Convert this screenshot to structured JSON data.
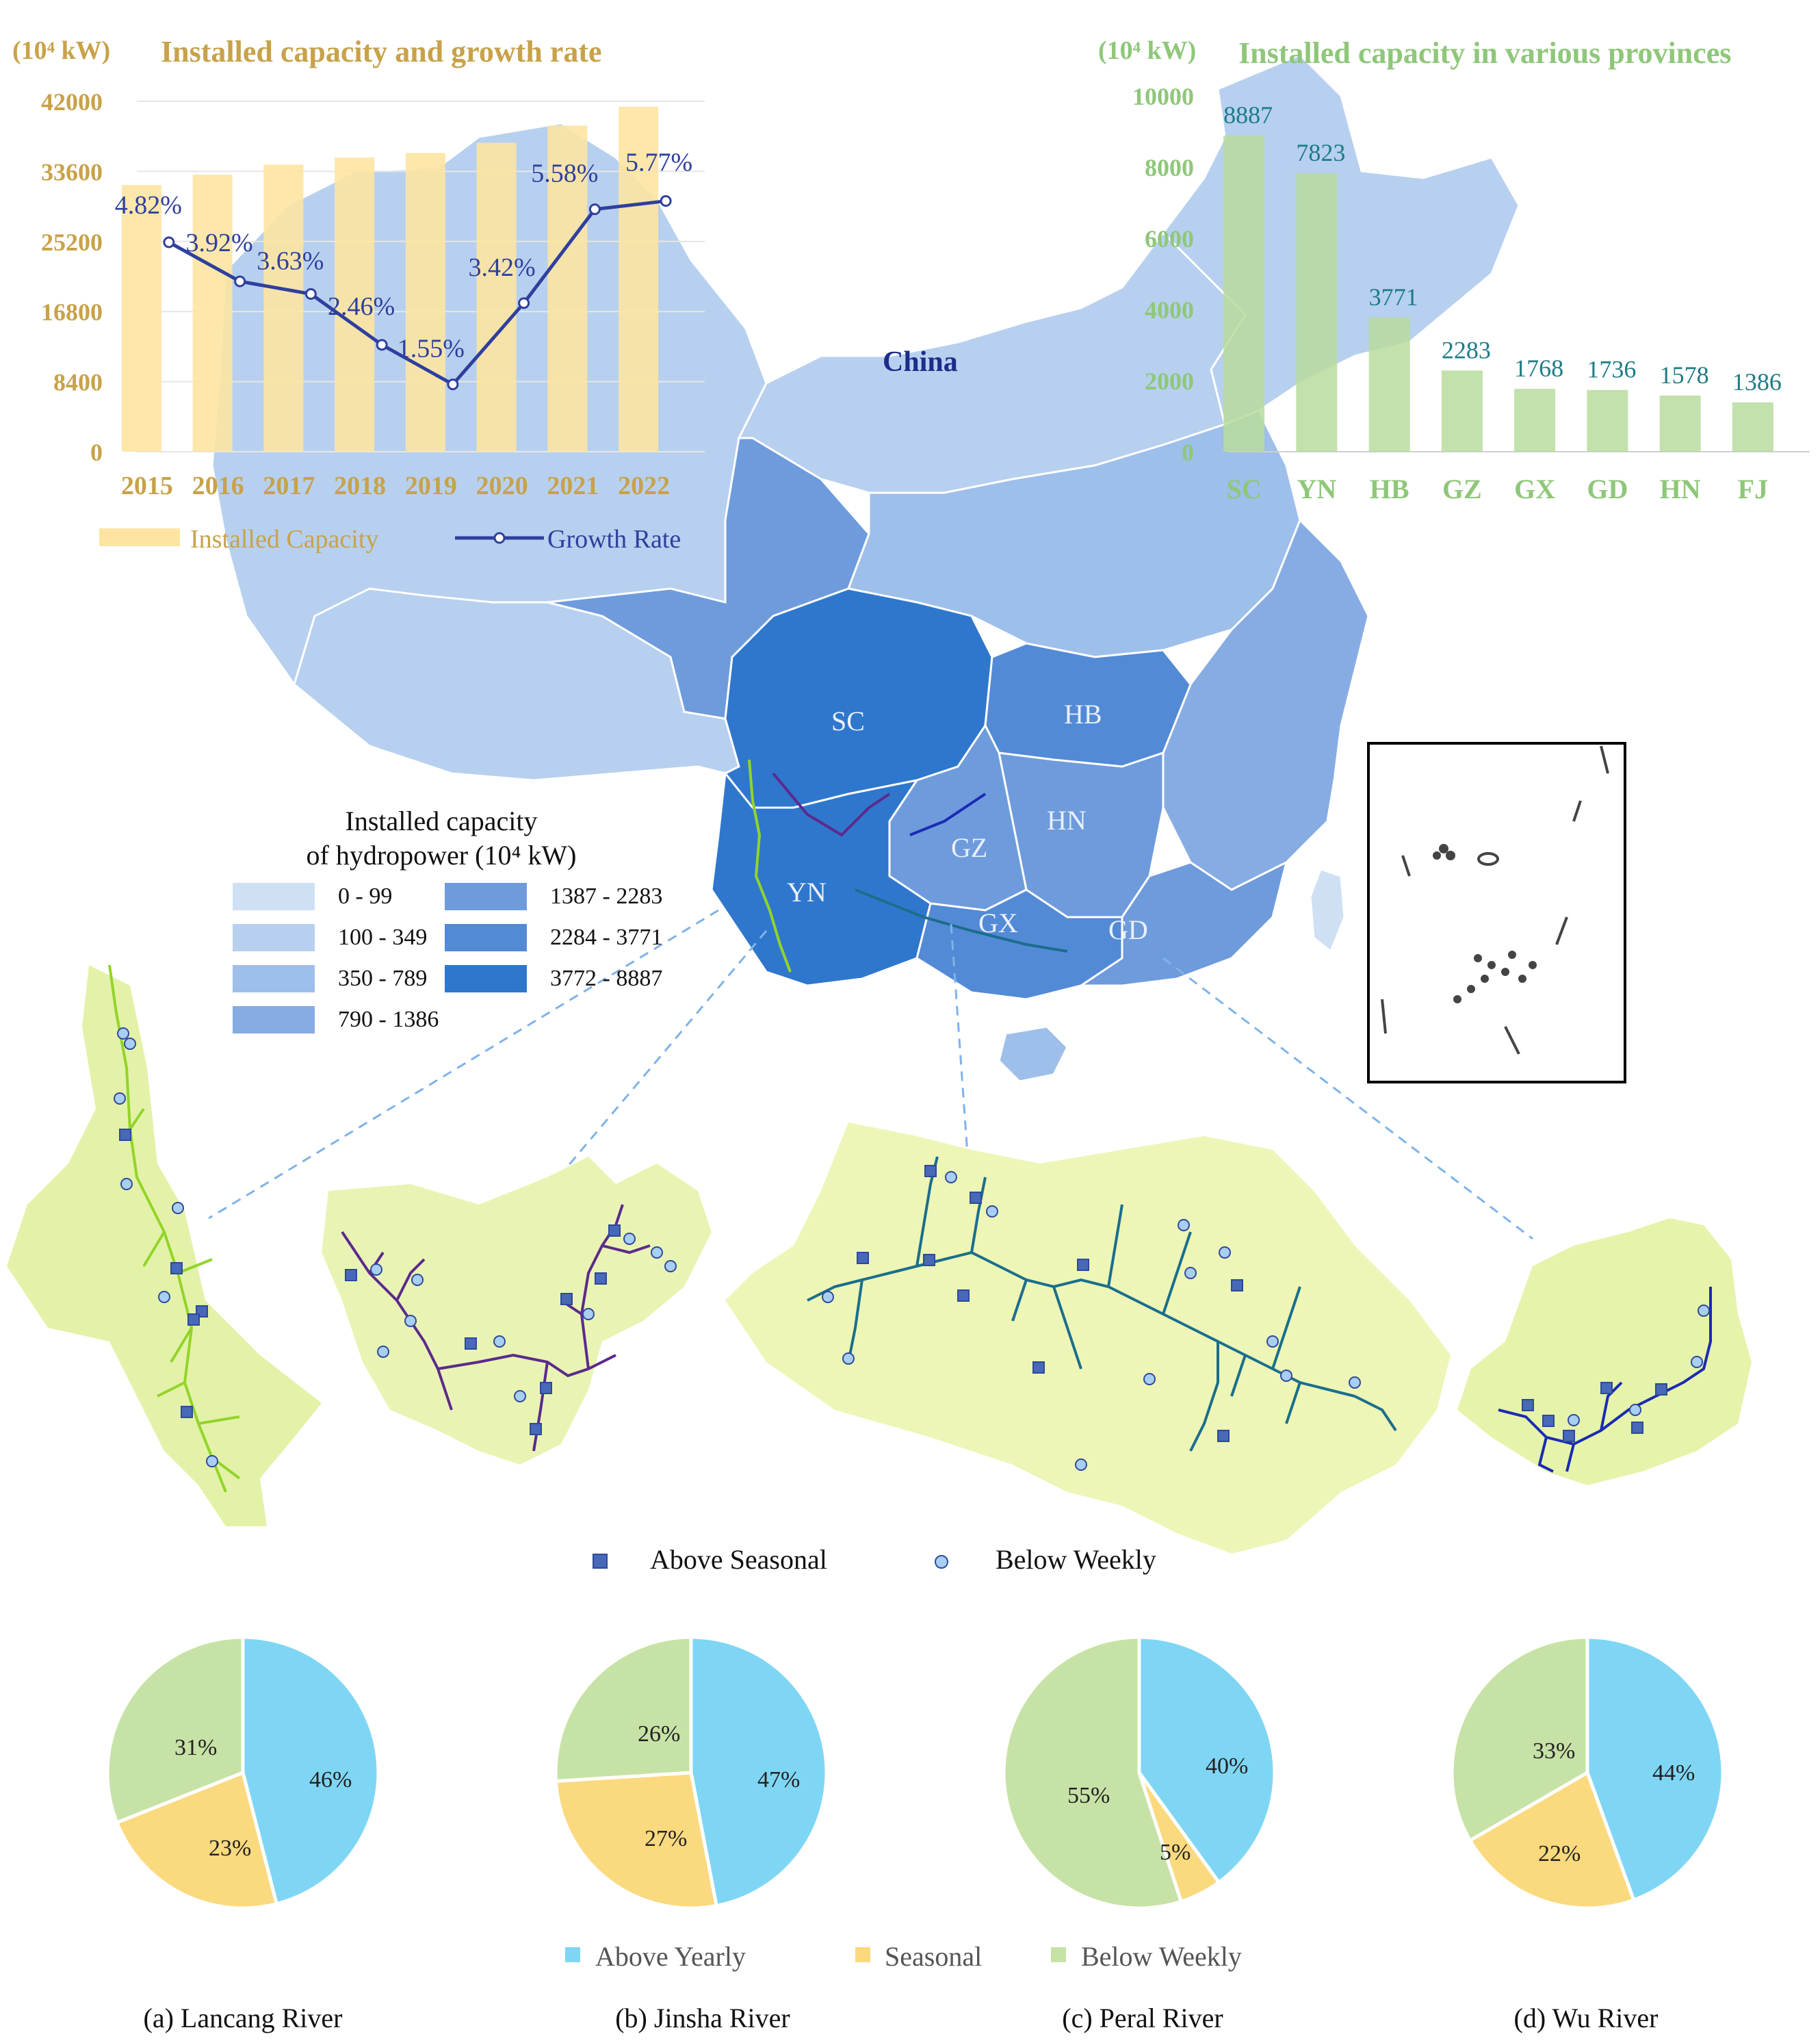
{
  "colors": {
    "gold_text": "#c8a24a",
    "capacity_bar": "#fde4a1",
    "growth_line": "#2e3f9e",
    "province_bar": "#b9dc9e",
    "province_value_text": "#1d7c86",
    "above_yearly": "#7fd6f4",
    "seasonal": "#fbd97e",
    "below_weekly": "#c7e2a6",
    "marker_square": "#4868b8",
    "marker_circle": "#a9cef4",
    "lancang": "#93d42a",
    "jinsha": "#5c2a8c",
    "pearl": "#1b6e8c",
    "wu": "#1a2bb4"
  },
  "map": {
    "country_label": "China",
    "province_labels": [
      "SC",
      "HB",
      "HN",
      "GZ",
      "YN",
      "GX",
      "GD"
    ],
    "legend": {
      "title_line1": "Installed capacity",
      "title_line2": "of hydropower (10⁴ kW)",
      "classes": [
        {
          "label": "0 - 99",
          "color": "#cfe0f4"
        },
        {
          "label": "100 - 349",
          "color": "#b7d0ef"
        },
        {
          "label": "350 - 789",
          "color": "#9ebfea"
        },
        {
          "label": "790 - 1386",
          "color": "#86ace3"
        },
        {
          "label": "1387 - 2283",
          "color": "#6e9bdc"
        },
        {
          "label": "2284 - 3771",
          "color": "#538ad6"
        },
        {
          "label": "3772 - 8887",
          "color": "#2f77cd"
        }
      ]
    }
  },
  "chart_data": [
    {
      "type": "bar",
      "title": "Installed capacity and growth rate",
      "ylabel": "(10⁴ kW)",
      "categories": [
        "2015",
        "2016",
        "2017",
        "2018",
        "2019",
        "2020",
        "2021",
        "2022"
      ],
      "yticks": [
        "0",
        "8400",
        "16800",
        "25200",
        "33600",
        "42000"
      ],
      "ylim": [
        0,
        42000
      ],
      "series": [
        {
          "name": "Installed Capacity",
          "values": [
            31954,
            33207,
            34411,
            35259,
            35804,
            37028,
            39092,
            41350
          ]
        },
        {
          "name": "Growth Rate",
          "type": "line",
          "values": [
            4.82,
            3.92,
            3.63,
            2.46,
            1.55,
            3.42,
            5.58,
            5.77
          ],
          "labels": [
            "4.82%",
            "3.92%",
            "3.63%",
            "2.46%",
            "1.55%",
            "3.42%",
            "5.58%",
            "5.77%"
          ]
        }
      ],
      "legend": "bottom"
    },
    {
      "type": "bar",
      "title": "Installed capacity in various provinces",
      "ylabel": "(10⁴ kW)",
      "categories": [
        "SC",
        "YN",
        "HB",
        "GZ",
        "GX",
        "GD",
        "HN",
        "FJ"
      ],
      "values": [
        8887,
        7823,
        3771,
        2283,
        1768,
        1736,
        1578,
        1386
      ],
      "yticks": [
        "0",
        "2000",
        "4000",
        "6000",
        "8000",
        "10000"
      ],
      "ylim": [
        0,
        10000
      ]
    },
    {
      "type": "pie",
      "title": "(a) Lancang River",
      "labels": [
        "Above Yearly",
        "Seasonal",
        "Below Weekly"
      ],
      "values": [
        46,
        23,
        31
      ]
    },
    {
      "type": "pie",
      "title": "(b) Jinsha River",
      "labels": [
        "Above Yearly",
        "Seasonal",
        "Below Weekly"
      ],
      "values": [
        47,
        27,
        26
      ]
    },
    {
      "type": "pie",
      "title": "(c) Peral River",
      "labels": [
        "Above Yearly",
        "Seasonal",
        "Below Weekly"
      ],
      "values": [
        40,
        5,
        55
      ]
    },
    {
      "type": "pie",
      "title": "(d) Wu River",
      "labels": [
        "Above Yearly",
        "Seasonal",
        "Below Weekly"
      ],
      "values": [
        44,
        22,
        33
      ]
    }
  ],
  "marker_legend": {
    "square": "Above Seasonal",
    "circle": "Below Weekly"
  },
  "pie_legend": [
    "Above Yearly",
    "Seasonal",
    "Below Weekly"
  ],
  "pie_captions": [
    "(a) Lancang River",
    "(b) Jinsha River",
    "(c) Peral River",
    "(d) Wu River"
  ],
  "pie_labels": [
    [
      "46%",
      "23%",
      "31%"
    ],
    [
      "47%",
      "27%",
      "26%"
    ],
    [
      "40%",
      "5%",
      "55%"
    ],
    [
      "44%",
      "22%",
      "33%"
    ]
  ]
}
